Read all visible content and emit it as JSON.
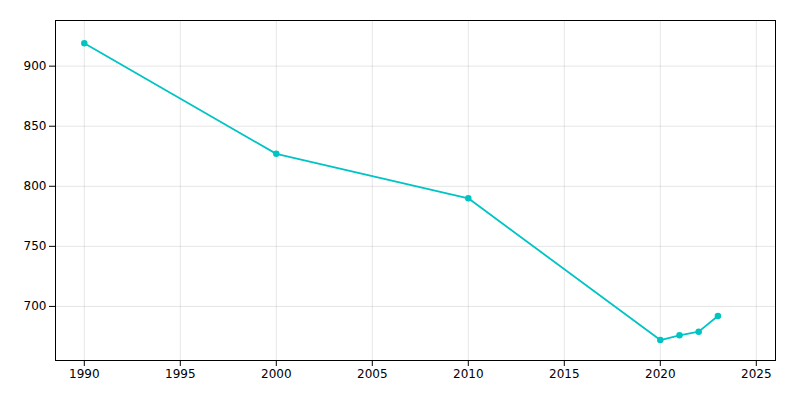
{
  "chart_data": {
    "type": "line",
    "x": [
      1990,
      2000,
      2010,
      2020,
      2021,
      2022,
      2023
    ],
    "values": [
      919,
      827,
      790,
      672,
      676,
      679,
      692
    ],
    "color": "#00C4C4",
    "marker": "circle",
    "xlim": [
      1988.5,
      2026
    ],
    "ylim": [
      655,
      938
    ],
    "xticks": [
      1990,
      1995,
      2000,
      2005,
      2010,
      2015,
      2020,
      2025
    ],
    "yticks": [
      700,
      750,
      800,
      850,
      900
    ],
    "grid": true
  }
}
